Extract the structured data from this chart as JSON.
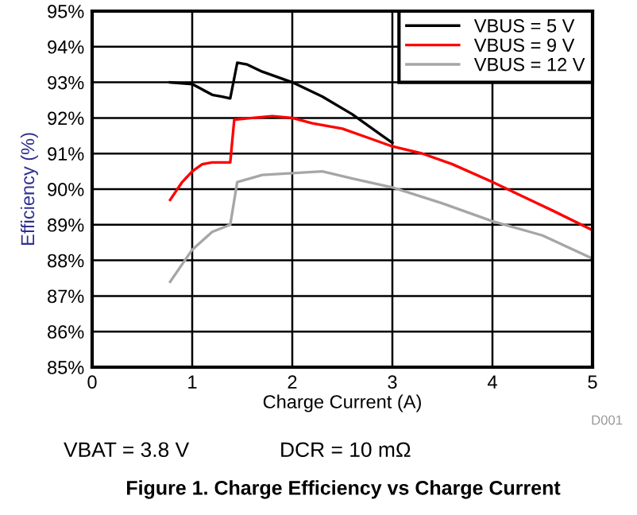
{
  "chart_data": {
    "type": "line",
    "title": "Figure 1. Charge Efficiency vs Charge Current",
    "xlabel": "Charge Current (A)",
    "ylabel": "Efficiency (%)",
    "annotations": [
      "VBAT = 3.8 V",
      "DCR = 10 mΩ",
      "D001"
    ],
    "series": [
      {
        "name": "VBUS = 5 V",
        "color": "#000000",
        "x": [
          0.78,
          1.0,
          1.1,
          1.2,
          1.3,
          1.38,
          1.45,
          1.55,
          1.7,
          2.0,
          2.3,
          2.6,
          2.9,
          3.0
        ],
        "values": [
          93.0,
          92.95,
          92.8,
          92.65,
          92.6,
          92.55,
          93.55,
          93.5,
          93.3,
          93.0,
          92.6,
          92.1,
          91.5,
          91.3
        ]
      },
      {
        "name": "VBUS = 9 V",
        "color": "#ff0000",
        "x": [
          0.78,
          0.9,
          1.0,
          1.1,
          1.2,
          1.38,
          1.42,
          1.6,
          1.8,
          2.0,
          2.2,
          2.5,
          2.8,
          3.0,
          3.3,
          3.6,
          4.0,
          4.3,
          4.6,
          5.0
        ],
        "values": [
          89.7,
          90.2,
          90.5,
          90.7,
          90.75,
          90.75,
          91.95,
          92.0,
          92.05,
          92.0,
          91.85,
          91.7,
          91.4,
          91.2,
          91.0,
          90.7,
          90.2,
          89.8,
          89.4,
          88.85
        ]
      },
      {
        "name": "VBUS = 12 V",
        "color": "#a6a6a6",
        "x": [
          0.78,
          1.0,
          1.2,
          1.38,
          1.45,
          1.7,
          2.0,
          2.3,
          2.6,
          3.0,
          3.5,
          4.0,
          4.5,
          5.0
        ],
        "values": [
          87.4,
          88.3,
          88.8,
          89.0,
          90.2,
          90.4,
          90.45,
          90.5,
          90.3,
          90.05,
          89.6,
          89.1,
          88.7,
          88.05
        ]
      }
    ],
    "xlim": [
      0,
      5
    ],
    "xticks": [
      0,
      1,
      2,
      3,
      4,
      5
    ],
    "ylim": [
      85,
      95
    ],
    "yticks": [
      {
        "value": 85,
        "label": "85%"
      },
      {
        "value": 86,
        "label": "86%"
      },
      {
        "value": 87,
        "label": "87%"
      },
      {
        "value": 88,
        "label": "88%"
      },
      {
        "value": 89,
        "label": "89%"
      },
      {
        "value": 90,
        "label": "90%"
      },
      {
        "value": 91,
        "label": "91%"
      },
      {
        "value": 92,
        "label": "92%"
      },
      {
        "value": 93,
        "label": "93%"
      },
      {
        "value": 94,
        "label": "94%"
      },
      {
        "value": 95,
        "label": "95%"
      }
    ],
    "grid": true,
    "legend": "top right",
    "line_style": "solid",
    "marker": "none"
  }
}
